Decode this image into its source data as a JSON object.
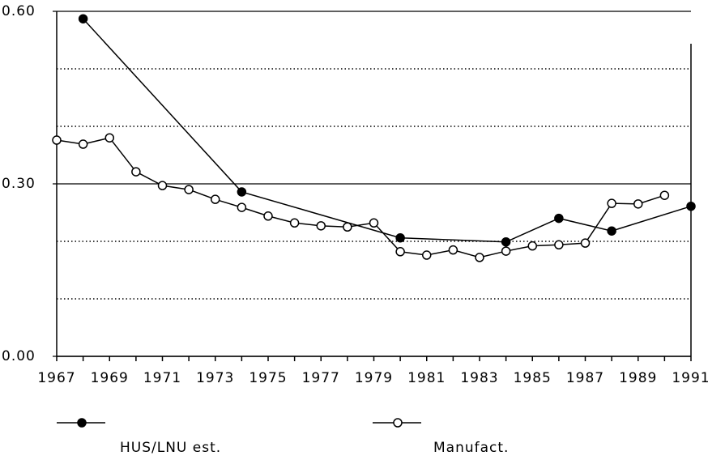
{
  "chart_data": {
    "type": "line",
    "xlim": [
      1967,
      1991
    ],
    "xticks": [
      1967,
      1969,
      1971,
      1973,
      1975,
      1977,
      1979,
      1981,
      1983,
      1985,
      1987,
      1989,
      1991
    ],
    "ylim": [
      0,
      0.6
    ],
    "yticks": [
      {
        "value": 0,
        "label": "0.00"
      },
      {
        "value": 0.3,
        "label": "0.30"
      },
      {
        "value": 0.6,
        "label": "0.60"
      }
    ],
    "minor_gridlines": [
      0.1,
      0.2,
      0.4,
      0.5
    ],
    "series": [
      {
        "name": "HUS/LNU est.",
        "color": "#000000",
        "marker": "filled",
        "x": [
          1968,
          1974,
          1980,
          1984,
          1986,
          1988,
          1991
        ],
        "values": [
          0.587,
          0.286,
          0.206,
          0.199,
          0.24,
          0.218,
          0.261
        ]
      },
      {
        "name": "Manufact.",
        "color": "#000000",
        "marker": "open",
        "x": [
          1967,
          1968,
          1969,
          1970,
          1971,
          1972,
          1973,
          1974,
          1975,
          1976,
          1977,
          1978,
          1979,
          1980,
          1981,
          1982,
          1983,
          1984,
          1985,
          1986,
          1987,
          1988,
          1989,
          1990
        ],
        "values": [
          0.376,
          0.369,
          0.38,
          0.321,
          0.297,
          0.29,
          0.273,
          0.259,
          0.244,
          0.232,
          0.227,
          0.225,
          0.232,
          0.182,
          0.176,
          0.185,
          0.172,
          0.183,
          0.192,
          0.194,
          0.197,
          0.266,
          0.265,
          0.28
        ]
      }
    ]
  }
}
